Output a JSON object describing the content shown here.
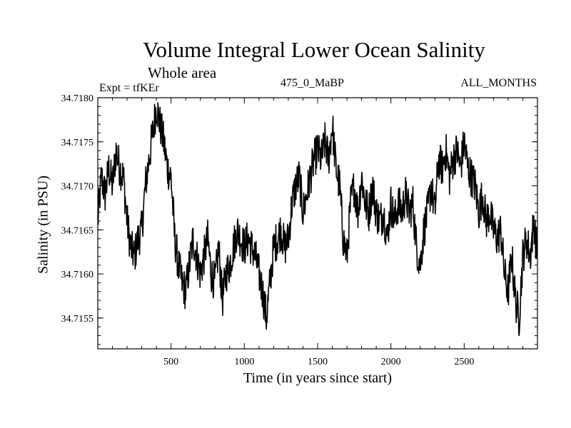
{
  "chart_data": {
    "type": "line",
    "title": "Volume Integral Lower Ocean Salinity",
    "subtitle": "Whole area",
    "left_label": "Expt = tfKEr",
    "center_label": "475_0_MaBP",
    "right_label": "ALL_MONTHS",
    "xlabel": "Time (in years since start)",
    "ylabel": "Salinity (in PSU)",
    "xlim": [
      0,
      3000
    ],
    "ylim": [
      34.71515,
      34.718
    ],
    "xticks": [
      500,
      1000,
      1500,
      2000,
      2500
    ],
    "yticks": [
      "34.7155",
      "34.7160",
      "34.7165",
      "34.7170",
      "34.7175",
      "34.7180"
    ],
    "ytick_values": [
      34.7155,
      34.716,
      34.7165,
      34.717,
      34.7175,
      34.718
    ],
    "grid": false,
    "line_color": "#000000",
    "series": [
      {
        "x": [
          0,
          25,
          50,
          75,
          100,
          125,
          150,
          175,
          200,
          225,
          250,
          275,
          300,
          325,
          350,
          375,
          400,
          425,
          450,
          475,
          500,
          525,
          550,
          575,
          600,
          625,
          650,
          675,
          700,
          725,
          750,
          775,
          800,
          825,
          850,
          875,
          900,
          925,
          950,
          975,
          1000,
          1025,
          1050,
          1075,
          1100,
          1125,
          1150,
          1175,
          1200,
          1225,
          1250,
          1275,
          1300,
          1325,
          1350,
          1375,
          1400,
          1425,
          1450,
          1475,
          1500,
          1525,
          1550,
          1575,
          1600,
          1625,
          1650,
          1675,
          1700,
          1725,
          1750,
          1775,
          1800,
          1825,
          1850,
          1875,
          1900,
          1925,
          1950,
          1975,
          2000,
          2025,
          2050,
          2075,
          2100,
          2125,
          2150,
          2175,
          2200,
          2225,
          2250,
          2275,
          2300,
          2325,
          2350,
          2375,
          2400,
          2425,
          2450,
          2475,
          2500,
          2525,
          2550,
          2575,
          2600,
          2625,
          2650,
          2675,
          2700,
          2725,
          2750,
          2775,
          2800,
          2825,
          2850,
          2875,
          2900,
          2925,
          2950,
          2975,
          3000
        ],
        "values": [
          34.7166,
          34.7171,
          34.7169,
          34.7172,
          34.717,
          34.7174,
          34.7172,
          34.7171,
          34.7166,
          34.7163,
          34.7162,
          34.7164,
          34.7165,
          34.717,
          34.7173,
          34.7176,
          34.7179,
          34.7177,
          34.7175,
          34.7172,
          34.7171,
          34.7164,
          34.7161,
          34.7159,
          34.7158,
          34.7161,
          34.7164,
          34.7162,
          34.716,
          34.7162,
          34.7164,
          34.716,
          34.7159,
          34.7163,
          34.7157,
          34.716,
          34.7161,
          34.7163,
          34.7165,
          34.7164,
          34.7163,
          34.7164,
          34.7163,
          34.7162,
          34.716,
          34.7158,
          34.7155,
          34.7159,
          34.7163,
          34.7164,
          34.7165,
          34.7163,
          34.7164,
          34.7168,
          34.717,
          34.7171,
          34.7167,
          34.7169,
          34.7171,
          34.7173,
          34.7174,
          34.7173,
          34.7175,
          34.7173,
          34.7177,
          34.7172,
          34.717,
          34.7164,
          34.7162,
          34.7168,
          34.717,
          34.7167,
          34.7171,
          34.7168,
          34.7167,
          34.717,
          34.7167,
          34.7166,
          34.7167,
          34.7164,
          34.7168,
          34.7166,
          34.7168,
          34.7167,
          34.7169,
          34.7167,
          34.7168,
          34.7163,
          34.7161,
          34.7165,
          34.7167,
          34.717,
          34.7167,
          34.7173,
          34.7172,
          34.7174,
          34.7171,
          34.7173,
          34.7174,
          34.7172,
          34.7175,
          34.7172,
          34.7171,
          34.717,
          34.7167,
          34.7169,
          34.7166,
          34.7167,
          34.7165,
          34.7164,
          34.7165,
          34.716,
          34.7158,
          34.7162,
          34.7157,
          34.7155,
          34.7162,
          34.7164,
          34.7162,
          34.7166,
          34.7162
        ]
      }
    ]
  }
}
